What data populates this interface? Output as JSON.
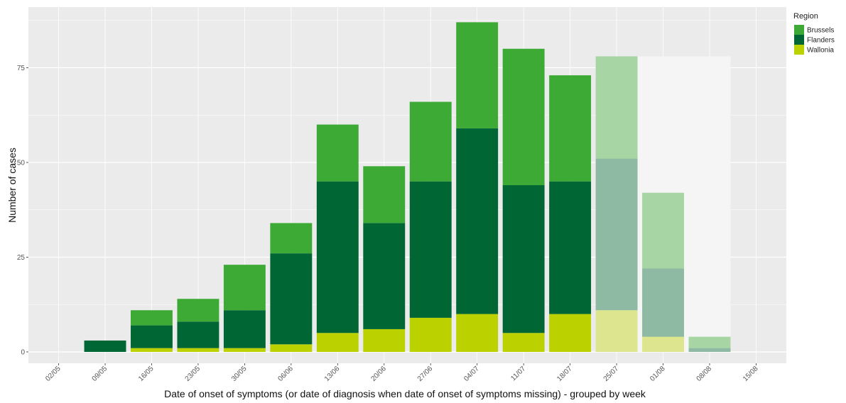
{
  "chart_data": {
    "type": "bar",
    "stacked": true,
    "xlabel": "Date of onset of symptoms (or date of diagnosis when date of onset of symptoms missing) - grouped by week",
    "ylabel": "Number of cases",
    "x_tick_labels": [
      "02/05",
      "09/05",
      "16/05",
      "23/05",
      "30/05",
      "06/06",
      "13/06",
      "20/06",
      "27/06",
      "04/07",
      "11/07",
      "18/07",
      "25/07",
      "01/08",
      "08/08",
      "15/08"
    ],
    "y_ticks": [
      0,
      25,
      50,
      75
    ],
    "ylim": [
      -3,
      91
    ],
    "grid": true,
    "categories": [
      "09/05",
      "16/05",
      "23/05",
      "30/05",
      "06/06",
      "13/06",
      "20/06",
      "27/06",
      "04/07",
      "11/07",
      "18/07",
      "25/07",
      "01/08",
      "08/08"
    ],
    "incomplete_from": "25/07",
    "incomplete_period_total": 78,
    "legend": {
      "title": "Region",
      "position": "right"
    },
    "series": [
      {
        "name": "Wallonia",
        "color": "#bcd100",
        "values": [
          0,
          1,
          1,
          1,
          2,
          5,
          6,
          9,
          10,
          5,
          10,
          11,
          4,
          0
        ]
      },
      {
        "name": "Flanders",
        "color": "#006633",
        "values": [
          3,
          6,
          7,
          10,
          24,
          40,
          28,
          36,
          49,
          39,
          35,
          40,
          18,
          1
        ]
      },
      {
        "name": "Brussels",
        "color": "#3daa35",
        "values": [
          0,
          4,
          6,
          12,
          8,
          15,
          15,
          21,
          28,
          36,
          28,
          27,
          20,
          3
        ]
      }
    ],
    "legend_order": [
      "Brussels",
      "Flanders",
      "Wallonia"
    ],
    "colors": {
      "panel_bg": "#ebebeb",
      "grid": "#ffffff",
      "incomplete_band": "#f5f5f5"
    }
  }
}
